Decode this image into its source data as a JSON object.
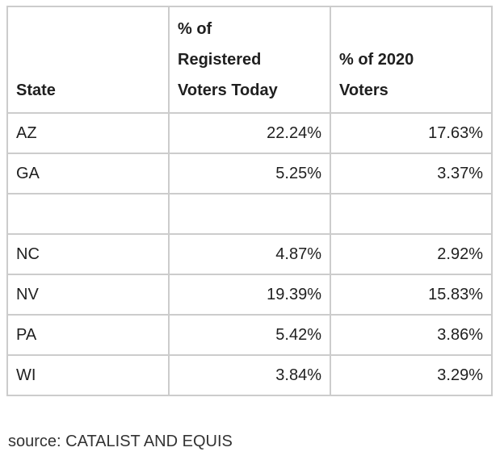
{
  "colors": {
    "border": "#cccccc",
    "text": "#1f1f1f",
    "source_text": "#333333",
    "background": "#ffffff"
  },
  "table": {
    "headers": [
      {
        "label": "State"
      },
      {
        "label": "% of\nRegistered\nVoters Today"
      },
      {
        "label": "% of 2020\nVoters"
      }
    ],
    "rows": [
      {
        "state": "AZ",
        "pct_registered_today": "22.24%",
        "pct_2020_voters": "17.63%"
      },
      {
        "state": "GA",
        "pct_registered_today": "5.25%",
        "pct_2020_voters": "3.37%"
      },
      {
        "state": "",
        "pct_registered_today": "",
        "pct_2020_voters": ""
      },
      {
        "state": "NC",
        "pct_registered_today": "4.87%",
        "pct_2020_voters": "2.92%"
      },
      {
        "state": "NV",
        "pct_registered_today": "19.39%",
        "pct_2020_voters": "15.83%"
      },
      {
        "state": "PA",
        "pct_registered_today": "5.42%",
        "pct_2020_voters": "3.86%"
      },
      {
        "state": "WI",
        "pct_registered_today": "3.84%",
        "pct_2020_voters": "3.29%"
      }
    ]
  },
  "source_note": "source: CATALIST AND EQUIS",
  "chart_data": {
    "type": "table",
    "columns": [
      "State",
      "% of Registered Voters Today",
      "% of 2020 Voters"
    ],
    "rows": [
      [
        "AZ",
        22.24,
        17.63
      ],
      [
        "GA",
        5.25,
        3.37
      ],
      [
        "",
        null,
        null
      ],
      [
        "NC",
        4.87,
        2.92
      ],
      [
        "NV",
        19.39,
        15.83
      ],
      [
        "PA",
        5.42,
        3.86
      ],
      [
        "WI",
        3.84,
        3.29
      ]
    ],
    "value_format": "percent",
    "source": "source: CATALIST AND EQUIS"
  }
}
